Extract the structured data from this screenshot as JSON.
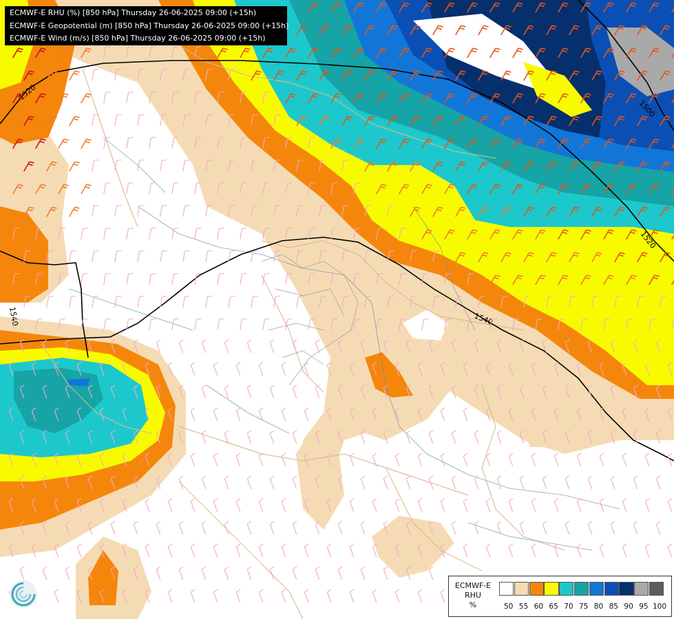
{
  "title_lines": [
    "ECMWF-E RHU (%) [850 hPa] Thursday 26-06-2025 09:00 (+15h)",
    "ECMWF-E Geopotential (m) [850 hPa] Thursday 26-06-2025 09:00 (+15h)",
    "ECMWF-E Wind (m/s) [850 hPa] Thursday 26-06-2025 09:00 (+15h)"
  ],
  "legend": {
    "label_lines": [
      "ECMWF-E",
      "RHU",
      "%"
    ],
    "colors": [
      "#ffffff",
      "#f5dbb4",
      "#f5860c",
      "#f8fb00",
      "#1dc8cc",
      "#16a4a6",
      "#1276d8",
      "#0b4fb4",
      "#062f6e",
      "#a9a9a9",
      "#5c5c5c"
    ],
    "ticks": [
      "50",
      "55",
      "60",
      "65",
      "70",
      "75",
      "80",
      "85",
      "90",
      "95",
      "100"
    ]
  },
  "contours": [
    {
      "label": "1520"
    },
    {
      "label": "1500"
    },
    {
      "label": "1520"
    },
    {
      "label": "1540"
    },
    {
      "label": "1540"
    }
  ],
  "logo": {
    "icon": "ecmwf-swirl-icon"
  }
}
